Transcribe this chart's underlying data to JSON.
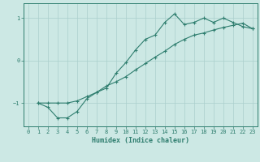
{
  "xlabel": "Humidex (Indice chaleur)",
  "bg_color": "#cce8e4",
  "line_color": "#2e7d6e",
  "grid_color": "#aacfcc",
  "xlim": [
    -0.5,
    23.5
  ],
  "ylim": [
    -1.55,
    1.35
  ],
  "xticks": [
    0,
    1,
    2,
    3,
    4,
    5,
    6,
    7,
    8,
    9,
    10,
    11,
    12,
    13,
    14,
    15,
    16,
    17,
    18,
    19,
    20,
    21,
    22,
    23
  ],
  "yticks": [
    -1,
    0,
    1
  ],
  "line1_x": [
    1,
    2,
    3,
    4,
    5,
    6,
    7,
    8,
    9,
    10,
    11,
    12,
    13,
    14,
    15,
    16,
    17,
    18,
    19,
    20,
    21,
    22,
    23
  ],
  "line1_y": [
    -1.0,
    -1.1,
    -1.35,
    -1.35,
    -1.2,
    -0.9,
    -0.75,
    -0.65,
    -0.3,
    -0.05,
    0.25,
    0.5,
    0.6,
    0.9,
    1.1,
    0.85,
    0.9,
    1.0,
    0.9,
    1.0,
    0.9,
    0.8,
    0.75
  ],
  "line2_x": [
    1,
    2,
    3,
    4,
    5,
    6,
    7,
    8,
    9,
    10,
    11,
    12,
    13,
    14,
    15,
    16,
    17,
    18,
    19,
    20,
    21,
    22,
    23
  ],
  "line2_y": [
    -1.0,
    -1.0,
    -1.0,
    -1.0,
    -0.95,
    -0.85,
    -0.75,
    -0.6,
    -0.5,
    -0.38,
    -0.22,
    -0.07,
    0.08,
    0.22,
    0.38,
    0.5,
    0.6,
    0.65,
    0.72,
    0.78,
    0.83,
    0.88,
    0.75
  ]
}
